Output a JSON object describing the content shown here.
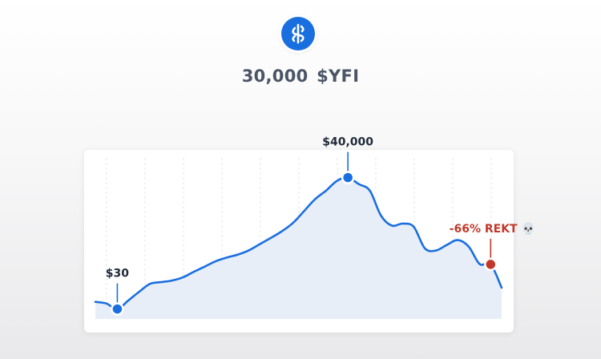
{
  "header": {
    "logo_icon": "yfi-icon",
    "headline": "30,000 $YFI"
  },
  "colors": {
    "line": "#1a6fe0",
    "fill": "#e8eef7",
    "crash": "#c0392b",
    "label": "#1f2a37"
  },
  "chart_data": {
    "type": "area",
    "title": "",
    "xlabel": "",
    "ylabel": "",
    "grid": "vertical dashed",
    "x": [
      0,
      1,
      2,
      3,
      4,
      5,
      6,
      7,
      8,
      9,
      10,
      11,
      12,
      13,
      14,
      15,
      16,
      17,
      18,
      19,
      20,
      21,
      22,
      23,
      24,
      25,
      26,
      27,
      28,
      29,
      30,
      31,
      32,
      33,
      34,
      35,
      36,
      37
    ],
    "values": [
      2200,
      1700,
      30,
      2600,
      5300,
      7700,
      8200,
      8700,
      9700,
      11400,
      13000,
      14600,
      15700,
      16600,
      17900,
      19800,
      21700,
      23700,
      26200,
      29800,
      33400,
      36000,
      39000,
      40000,
      38000,
      36000,
      28500,
      25400,
      26000,
      25000,
      18500,
      17800,
      19500,
      21000,
      19000,
      13700,
      13600,
      6500
    ],
    "ylim": [
      -3000,
      46000
    ],
    "annotations": [
      {
        "label": "$30",
        "index": 2,
        "value": 30,
        "color": "blue"
      },
      {
        "label": "$40,000",
        "index": 23,
        "value": 40000,
        "color": "blue"
      },
      {
        "label": "-66% REKT 💀",
        "index": 36,
        "value": 13600,
        "color": "red"
      }
    ]
  }
}
